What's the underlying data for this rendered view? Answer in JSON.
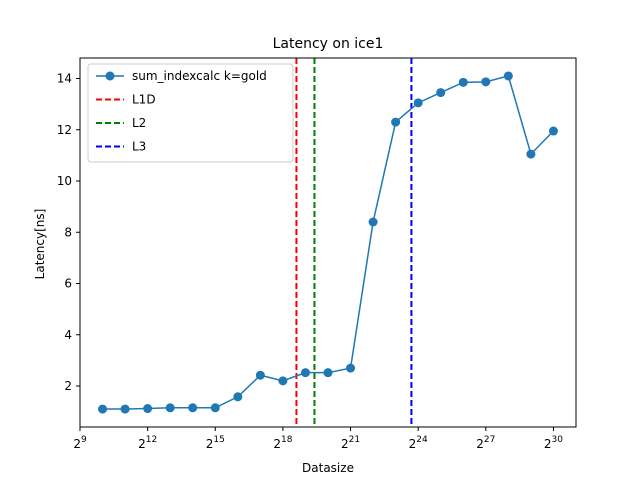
{
  "chart_data": {
    "type": "line",
    "title": "Latency on ice1",
    "xlabel": "Datasize",
    "ylabel": "Latency[ns]",
    "x_scale": "log2",
    "xlim_exponent": [
      9,
      31
    ],
    "ylim": [
      0.4,
      14.8
    ],
    "x_ticks": [
      {
        "base": "2",
        "exp": "9",
        "value": 9
      },
      {
        "base": "2",
        "exp": "12",
        "value": 12
      },
      {
        "base": "2",
        "exp": "15",
        "value": 15
      },
      {
        "base": "2",
        "exp": "18",
        "value": 18
      },
      {
        "base": "2",
        "exp": "21",
        "value": 21
      },
      {
        "base": "2",
        "exp": "24",
        "value": 24
      },
      {
        "base": "2",
        "exp": "27",
        "value": 27
      },
      {
        "base": "2",
        "exp": "30",
        "value": 30
      }
    ],
    "y_ticks": [
      {
        "label": "2",
        "value": 2
      },
      {
        "label": "4",
        "value": 4
      },
      {
        "label": "6",
        "value": 6
      },
      {
        "label": "8",
        "value": 8
      },
      {
        "label": "10",
        "value": 10
      },
      {
        "label": "12",
        "value": 12
      },
      {
        "label": "14",
        "value": 14
      }
    ],
    "series": [
      {
        "name": "sum_indexcalc k=gold",
        "color": "#1f77b4",
        "x_exponent": [
          10,
          11,
          12,
          13,
          14,
          15,
          16,
          17,
          18,
          19,
          20,
          21,
          22,
          23,
          24,
          25,
          26,
          27,
          28,
          29,
          30
        ],
        "y": [
          1.1,
          1.1,
          1.12,
          1.15,
          1.15,
          1.15,
          1.58,
          2.42,
          2.2,
          2.52,
          2.52,
          2.7,
          8.4,
          12.3,
          13.05,
          13.45,
          13.85,
          13.87,
          14.1,
          11.05,
          11.95
        ]
      }
    ],
    "vlines": [
      {
        "name": "L1D",
        "x_exponent": 18.6,
        "color": "#d62728",
        "line_color": "#ff0000"
      },
      {
        "name": "L2",
        "x_exponent": 19.4,
        "color": "#2ca02c",
        "line_color": "#008000"
      },
      {
        "name": "L3",
        "x_exponent": 23.7,
        "color": "#1f1fd0",
        "line_color": "#0000ff"
      }
    ],
    "grid": false,
    "legend_position": "upper-left"
  }
}
